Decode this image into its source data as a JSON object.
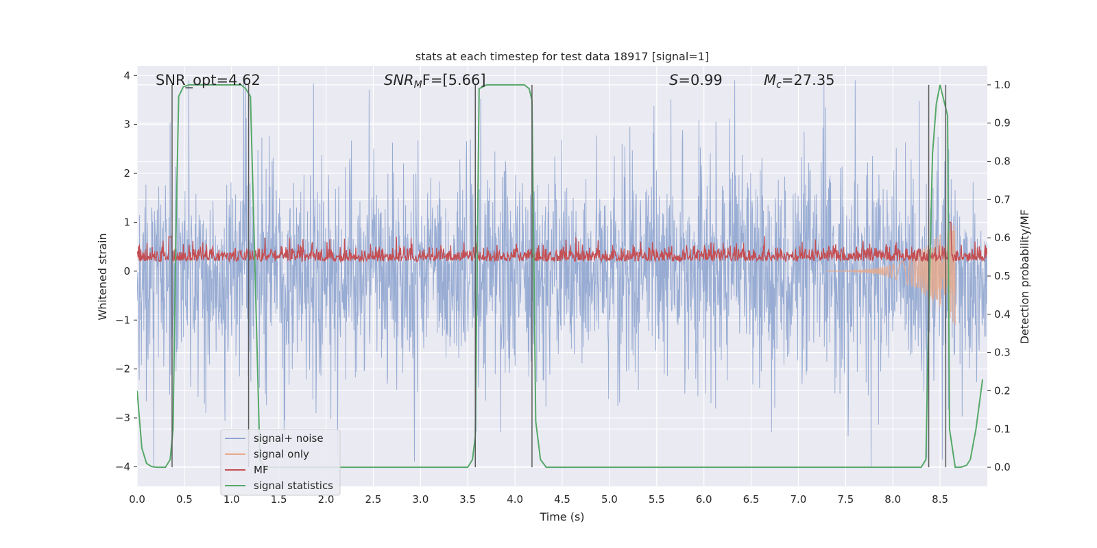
{
  "chart_data": {
    "type": "line",
    "title": "stats at each timestep for test data 18917 [signal=1]",
    "xlabel": "Time (s)",
    "ylabel": "Whitened strain",
    "y2label": "Detection probability/MF",
    "xlim": [
      0.0,
      9.0
    ],
    "ylim": [
      -4.4,
      4.2
    ],
    "y2lim": [
      -0.05,
      1.05
    ],
    "xticks": [
      "0.0",
      "0.5",
      "1.0",
      "1.5",
      "2.0",
      "2.5",
      "3.0",
      "3.5",
      "4.0",
      "4.5",
      "5.0",
      "5.5",
      "6.0",
      "6.5",
      "7.0",
      "7.5",
      "8.0",
      "8.5"
    ],
    "yticks": [
      "4",
      "3",
      "2",
      "1",
      "0",
      "−1",
      "−2",
      "−3",
      "−4"
    ],
    "y2ticks": [
      "1.0",
      "0.9",
      "0.8",
      "0.7",
      "0.6",
      "0.5",
      "0.4",
      "0.3",
      "0.2",
      "0.1",
      "0.0"
    ],
    "grid": true,
    "legend_position": "lower-left",
    "annotations": {
      "snr_opt": "SNR_opt=4.62",
      "snr_mf": "SNR",
      "snr_mf_sub": "M",
      "snr_mf_rest": "F=[5.66]",
      "s": "S",
      "s_rest": "=0.99",
      "mc": "M",
      "mc_sub": "c",
      "mc_rest": "=27.35"
    },
    "series": [
      {
        "name": "signal+ noise",
        "color": "#8fa5cf",
        "description_values": {
          "amplitude_typical": 1.5,
          "amplitude_peak": 3.8
        }
      },
      {
        "name": "signal only",
        "color": "#e8a98a",
        "x": [
          7.3,
          7.6,
          7.9,
          8.1,
          8.3,
          8.4,
          8.5,
          8.55,
          8.6,
          8.64
        ],
        "y": [
          0.02,
          0.03,
          0.05,
          0.08,
          0.15,
          0.3,
          0.45,
          0.6,
          0.9,
          1.1
        ]
      },
      {
        "name": "MF",
        "color": "#c44e52",
        "baseline": 0.2,
        "amplitude": 0.3
      },
      {
        "name": "signal statistics",
        "color": "#55a868",
        "x": [
          0.0,
          0.05,
          0.1,
          0.15,
          0.2,
          0.25,
          0.3,
          0.35,
          0.38,
          0.41,
          0.44,
          0.49,
          0.55,
          1.1,
          1.15,
          1.2,
          1.25,
          1.3,
          1.35,
          3.4,
          3.5,
          3.55,
          3.58,
          3.62,
          3.7,
          4.1,
          4.15,
          4.18,
          4.22,
          4.27,
          4.33,
          8.3,
          8.35,
          8.38,
          8.42,
          8.46,
          8.5,
          8.53,
          8.58,
          8.6,
          8.66,
          8.72,
          8.78,
          8.82,
          8.88,
          8.95
        ],
        "y": [
          0.2,
          0.05,
          0.01,
          0.002,
          0.0,
          0.0,
          0.0,
          0.02,
          0.1,
          0.6,
          0.97,
          0.995,
          1.0,
          1.0,
          0.99,
          0.97,
          0.5,
          0.02,
          0.0,
          0.0,
          0.0,
          0.02,
          0.08,
          0.99,
          1.0,
          1.0,
          0.99,
          0.96,
          0.12,
          0.02,
          0.0,
          0.0,
          0.02,
          0.4,
          0.82,
          0.95,
          1.0,
          0.97,
          0.92,
          0.1,
          0.0,
          0.0,
          0.005,
          0.02,
          0.1,
          0.23
        ]
      }
    ],
    "vertical_lines_x": [
      0.37,
      1.18,
      3.58,
      4.18,
      8.38,
      8.56
    ]
  }
}
